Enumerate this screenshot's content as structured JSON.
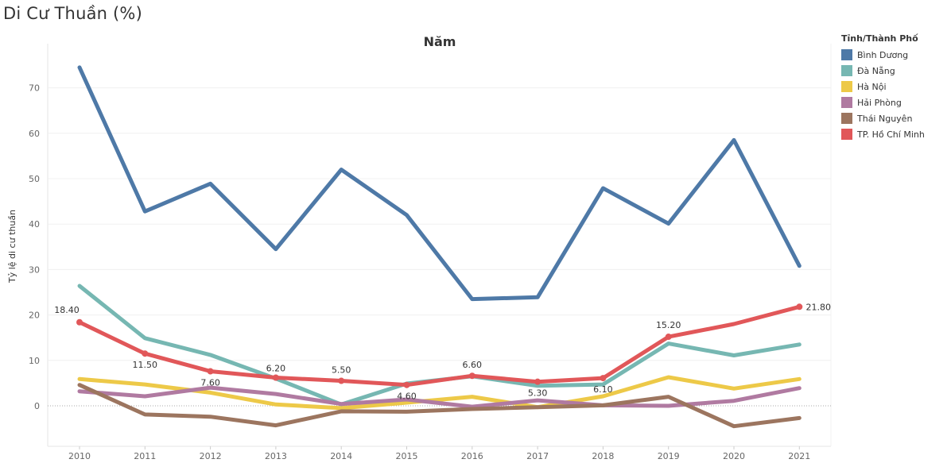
{
  "page": {
    "title": "Di Cư Thuần (%)"
  },
  "legend": {
    "title": "Tỉnh/Thành Phố"
  },
  "colors": {
    "Bình Dương": "#4e79a7",
    "Đà Nẵng": "#76b7b2",
    "Hà Nội": "#edc948",
    "Hải Phòng": "#b07aa1",
    "Thái Nguyên": "#9c755f",
    "TP. Hồ Chí Minh": "#e15759"
  },
  "chart_data": {
    "type": "line",
    "title": "Năm",
    "xlabel": "",
    "ylabel": "Tỷ lệ di cư thuần",
    "x": [
      "2010",
      "2011",
      "2012",
      "2013",
      "2014",
      "2015",
      "2016",
      "2017",
      "2018",
      "2019",
      "2020",
      "2021"
    ],
    "ylim": [
      -9,
      79
    ],
    "yticks": [
      0,
      10,
      20,
      30,
      40,
      50,
      60,
      70
    ],
    "grid": true,
    "legend_position": "right",
    "series": [
      {
        "name": "Bình Dương",
        "values": [
          74.5,
          42.8,
          48.9,
          34.5,
          52.0,
          42.0,
          23.5,
          23.9,
          47.9,
          40.1,
          58.5,
          30.8
        ]
      },
      {
        "name": "Đà Nẵng",
        "values": [
          26.4,
          14.9,
          11.2,
          6.0,
          0.3,
          4.9,
          6.5,
          4.4,
          4.7,
          13.7,
          11.1,
          13.5
        ]
      },
      {
        "name": "Hà Nội",
        "values": [
          5.9,
          4.7,
          2.9,
          0.3,
          -0.5,
          0.7,
          2.0,
          -0.3,
          2.1,
          6.3,
          3.8,
          5.9
        ]
      },
      {
        "name": "Hải Phòng",
        "values": [
          3.2,
          2.1,
          4.0,
          2.6,
          0.4,
          1.4,
          -0.2,
          1.2,
          0.1,
          0.0,
          1.1,
          3.9
        ]
      },
      {
        "name": "Thái Nguyên",
        "values": [
          4.6,
          -1.9,
          -2.4,
          -4.3,
          -1.2,
          -1.3,
          -0.7,
          -0.3,
          0.1,
          2.0,
          -4.5,
          -2.7
        ]
      },
      {
        "name": "TP. Hồ Chí Minh",
        "values": [
          18.4,
          11.5,
          7.6,
          6.2,
          5.5,
          4.6,
          6.6,
          5.3,
          6.1,
          15.2,
          18.0,
          21.8
        ]
      }
    ],
    "data_labels": [
      {
        "series": "TP. Hồ Chí Minh",
        "index": 0,
        "text": "18.40"
      },
      {
        "series": "TP. Hồ Chí Minh",
        "index": 1,
        "text": "11.50"
      },
      {
        "series": "TP. Hồ Chí Minh",
        "index": 2,
        "text": "7.60"
      },
      {
        "series": "TP. Hồ Chí Minh",
        "index": 3,
        "text": "6.20"
      },
      {
        "series": "TP. Hồ Chí Minh",
        "index": 4,
        "text": "5.50"
      },
      {
        "series": "TP. Hồ Chí Minh",
        "index": 5,
        "text": "4.60"
      },
      {
        "series": "TP. Hồ Chí Minh",
        "index": 6,
        "text": "6.60"
      },
      {
        "series": "TP. Hồ Chí Minh",
        "index": 7,
        "text": "5.30"
      },
      {
        "series": "TP. Hồ Chí Minh",
        "index": 8,
        "text": "6.10"
      },
      {
        "series": "TP. Hồ Chí Minh",
        "index": 9,
        "text": "15.20"
      },
      {
        "series": "TP. Hồ Chí Minh",
        "index": 11,
        "text": "21.80"
      }
    ]
  }
}
